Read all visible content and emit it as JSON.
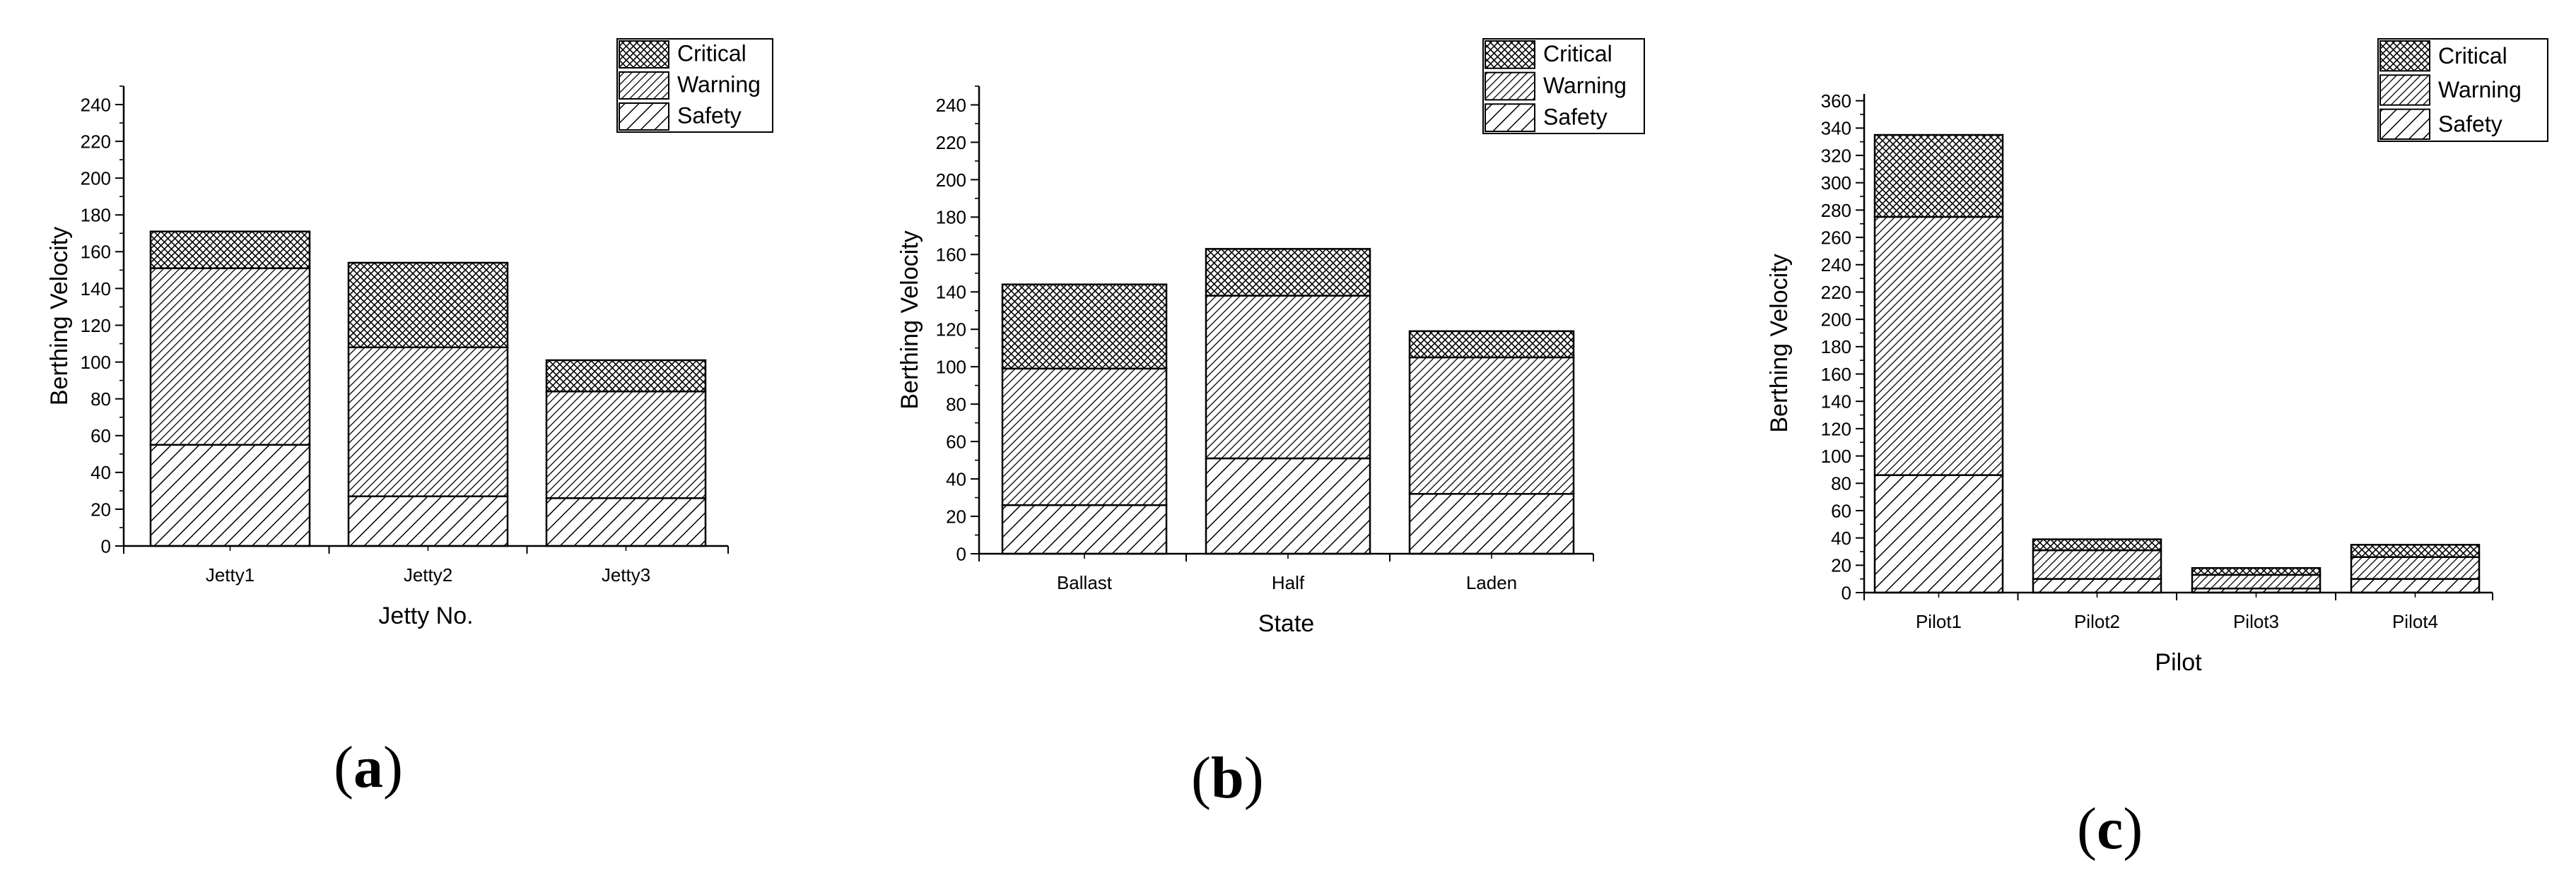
{
  "figure": {
    "panels": [
      {
        "label_open": "(",
        "label_letter": "a",
        "label_close": ")"
      },
      {
        "label_open": "(",
        "label_letter": "b",
        "label_close": ")"
      },
      {
        "label_open": "(",
        "label_letter": "c",
        "label_close": ")"
      }
    ]
  },
  "chart_data": [
    {
      "type": "bar",
      "stacked": true,
      "categories": [
        "Jetty1",
        "Jetty2",
        "Jetty3"
      ],
      "series": [
        {
          "name": "Safety",
          "values": [
            55,
            27,
            26
          ],
          "pattern": "wide-diagonal"
        },
        {
          "name": "Warning",
          "values": [
            96,
            81,
            58
          ],
          "pattern": "narrow-diagonal"
        },
        {
          "name": "Critical",
          "values": [
            20,
            46,
            17
          ],
          "pattern": "crosshatch"
        }
      ],
      "xlabel": "Jetty No.",
      "ylabel": "Berthing Velocity",
      "ylim": [
        0,
        250
      ],
      "yticks": [
        0,
        20,
        40,
        60,
        80,
        100,
        120,
        140,
        160,
        180,
        200,
        220,
        240
      ],
      "legend_order": [
        "Critical",
        "Warning",
        "Safety"
      ],
      "legend": "top-right",
      "grid": false
    },
    {
      "type": "bar",
      "stacked": true,
      "categories": [
        "Ballast",
        "Half",
        "Laden"
      ],
      "series": [
        {
          "name": "Safety",
          "values": [
            26,
            51,
            32
          ],
          "pattern": "wide-diagonal"
        },
        {
          "name": "Warning",
          "values": [
            73,
            87,
            73
          ],
          "pattern": "narrow-diagonal"
        },
        {
          "name": "Critical",
          "values": [
            45,
            25,
            14
          ],
          "pattern": "crosshatch"
        }
      ],
      "xlabel": "State",
      "ylabel": "Berthing Velocity",
      "ylim": [
        0,
        250
      ],
      "yticks": [
        0,
        20,
        40,
        60,
        80,
        100,
        120,
        140,
        160,
        180,
        200,
        220,
        240
      ],
      "legend_order": [
        "Critical",
        "Warning",
        "Safety"
      ],
      "legend": "top-right",
      "grid": false
    },
    {
      "type": "bar",
      "stacked": true,
      "categories": [
        "Pilot1",
        "Pilot2",
        "Pilot3",
        "Pilot4"
      ],
      "series": [
        {
          "name": "Safety",
          "values": [
            86,
            10,
            3,
            10
          ],
          "pattern": "wide-diagonal"
        },
        {
          "name": "Warning",
          "values": [
            189,
            21,
            10,
            16
          ],
          "pattern": "narrow-diagonal"
        },
        {
          "name": "Critical",
          "values": [
            60,
            8,
            5,
            9
          ],
          "pattern": "crosshatch"
        }
      ],
      "xlabel": "Pilot",
      "ylabel": "Berthing Velocity",
      "ylim": [
        0,
        365
      ],
      "yticks": [
        0,
        20,
        40,
        60,
        80,
        100,
        120,
        140,
        160,
        180,
        200,
        220,
        240,
        260,
        280,
        300,
        320,
        340,
        360
      ],
      "legend_order": [
        "Critical",
        "Warning",
        "Safety"
      ],
      "legend": "top-right",
      "grid": false
    }
  ]
}
